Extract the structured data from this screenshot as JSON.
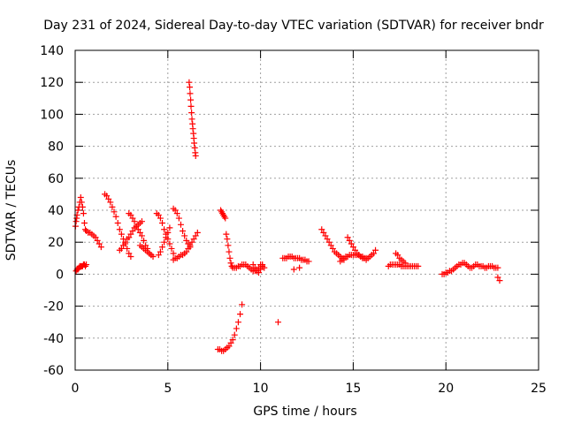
{
  "chart_data": {
    "type": "scatter",
    "title": "Day 231 of 2024, Sidereal Day-to-day VTEC variation (SDTVAR) for receiver bndr",
    "xlabel": "GPS time / hours",
    "ylabel": "SDTVAR / TECUs",
    "xlim": [
      0,
      25
    ],
    "ylim": [
      -60,
      140
    ],
    "xticks": [
      0,
      5,
      10,
      15,
      20,
      25
    ],
    "yticks": [
      -60,
      -40,
      -20,
      0,
      20,
      40,
      60,
      80,
      100,
      120,
      140
    ],
    "xtick_labels": [
      "0",
      "5",
      "10",
      "15",
      "20",
      "25"
    ],
    "ytick_labels": [
      "-60",
      "-40",
      "-20",
      "0",
      "20",
      "40",
      "60",
      "80",
      "100",
      "120",
      "140"
    ],
    "grid": true,
    "marker": "plus",
    "color": "#ff0000",
    "series": [
      {
        "x": [
          0.02,
          0.05,
          0.08,
          0.1,
          0.15,
          0.2,
          0.25,
          0.3,
          0.35,
          0.4,
          0.45,
          0.5,
          0.55,
          0.6,
          0.7,
          0.8,
          0.9,
          1.0,
          1.1,
          1.2,
          1.3,
          1.4
        ],
        "y": [
          30,
          33,
          35,
          37,
          40,
          42,
          45,
          48,
          45,
          42,
          38,
          32,
          28,
          27,
          26,
          26,
          25,
          24,
          23,
          21,
          19,
          17
        ]
      },
      {
        "x": [
          0.05,
          0.1,
          0.15,
          0.2,
          0.25,
          0.3,
          0.35,
          0.4,
          0.45,
          0.5,
          0.55,
          0.6
        ],
        "y": [
          2,
          3,
          3,
          4,
          5,
          5,
          5,
          5,
          6,
          6,
          5,
          6
        ]
      },
      {
        "x": [
          1.6,
          1.7,
          1.8,
          1.9,
          2.0,
          2.1,
          2.2,
          2.3,
          2.4,
          2.5,
          2.6,
          2.7,
          2.8,
          2.9,
          3.0
        ],
        "y": [
          50,
          49,
          47,
          45,
          42,
          39,
          36,
          32,
          28,
          25,
          22,
          19,
          16,
          13,
          11
        ]
      },
      {
        "x": [
          2.4,
          2.5,
          2.6,
          2.7,
          2.8,
          2.9,
          3.0,
          3.1,
          3.2,
          3.3,
          3.4,
          3.5,
          3.6
        ],
        "y": [
          15,
          16,
          18,
          20,
          22,
          23,
          25,
          27,
          29,
          30,
          31,
          32,
          33
        ]
      },
      {
        "x": [
          2.9,
          3.0,
          3.1,
          3.2,
          3.3,
          3.4,
          3.5,
          3.6,
          3.7,
          3.8,
          3.9,
          4.0,
          4.1,
          4.2
        ],
        "y": [
          38,
          37,
          35,
          33,
          30,
          28,
          26,
          24,
          21,
          18,
          16,
          13,
          12,
          11
        ]
      },
      {
        "x": [
          3.5,
          3.6,
          3.7,
          3.8,
          3.9,
          4.0,
          4.1
        ],
        "y": [
          18,
          17,
          16,
          15,
          14,
          13,
          12
        ]
      },
      {
        "x": [
          4.4,
          4.5,
          4.6,
          4.7,
          4.8,
          4.9,
          5.0,
          5.1,
          5.2,
          5.3
        ],
        "y": [
          38,
          37,
          35,
          32,
          28,
          25,
          22,
          19,
          16,
          13
        ]
      },
      {
        "x": [
          4.5,
          4.6,
          4.7,
          4.8,
          4.9,
          5.0,
          5.1
        ],
        "y": [
          12,
          14,
          17,
          20,
          23,
          26,
          29
        ]
      },
      {
        "x": [
          5.3,
          5.4,
          5.5,
          5.6,
          5.7,
          5.8,
          5.9,
          6.0,
          6.1,
          6.2
        ],
        "y": [
          41,
          40,
          38,
          35,
          31,
          27,
          24,
          21,
          19,
          17
        ]
      },
      {
        "x": [
          5.3,
          5.4,
          5.5,
          5.6,
          5.7,
          5.8,
          5.9,
          6.0,
          6.1,
          6.2,
          6.3,
          6.4,
          6.5,
          6.6
        ],
        "y": [
          9,
          10,
          10,
          11,
          12,
          12,
          13,
          14,
          16,
          18,
          20,
          22,
          24,
          26
        ]
      },
      {
        "x": [
          6.15,
          6.18,
          6.2,
          6.23,
          6.25,
          6.28,
          6.3,
          6.33,
          6.35,
          6.38,
          6.4,
          6.42,
          6.45,
          6.48,
          6.5
        ],
        "y": [
          120,
          117,
          113,
          109,
          105,
          101,
          97,
          94,
          91,
          88,
          85,
          82,
          79,
          76,
          74
        ]
      },
      {
        "x": [
          7.85,
          7.9,
          7.95,
          8.0,
          8.05,
          8.1,
          8.15,
          8.2,
          8.25,
          8.3,
          8.35,
          8.4,
          8.45,
          8.5,
          8.6,
          8.7,
          8.8,
          8.9,
          9.0,
          9.1,
          9.2,
          9.3,
          9.4,
          9.5,
          9.6,
          9.7,
          9.8,
          9.9,
          10.0,
          10.1,
          10.2
        ],
        "y": [
          40,
          39,
          38,
          37,
          36,
          35,
          25,
          22,
          18,
          14,
          10,
          7,
          5,
          4,
          4,
          4,
          5,
          5,
          6,
          6,
          6,
          5,
          4,
          3,
          2,
          2,
          3,
          4,
          6,
          5,
          4
        ]
      },
      {
        "x": [
          7.7,
          7.8,
          7.9,
          8.0,
          8.1,
          8.2,
          8.3,
          8.4,
          8.5,
          8.6,
          8.7,
          8.8,
          8.9,
          9.0
        ],
        "y": [
          -47,
          -47,
          -48,
          -48,
          -47,
          -46,
          -45,
          -43,
          -41,
          -38,
          -34,
          -30,
          -25,
          -19
        ]
      },
      {
        "x": [
          9.6,
          9.7,
          9.8,
          9.9,
          10.0,
          10.1
        ],
        "y": [
          6,
          4,
          2,
          1,
          3,
          6
        ]
      },
      {
        "x": [
          10.95
        ],
        "y": [
          -30
        ]
      },
      {
        "x": [
          11.2,
          11.3,
          11.4,
          11.5,
          11.6,
          11.7,
          11.8,
          11.9,
          12.0,
          12.1,
          12.2,
          12.3,
          12.4,
          12.5,
          12.6
        ],
        "y": [
          10,
          10,
          10,
          11,
          11,
          11,
          10,
          10,
          10,
          10,
          9,
          9,
          9,
          8,
          8
        ]
      },
      {
        "x": [
          11.8,
          12.1
        ],
        "y": [
          3,
          4
        ]
      },
      {
        "x": [
          13.3,
          13.4,
          13.5,
          13.6,
          13.7,
          13.8,
          13.9,
          14.0,
          14.1,
          14.2,
          14.3,
          14.4,
          14.5
        ],
        "y": [
          28,
          26,
          24,
          22,
          20,
          18,
          16,
          14,
          13,
          12,
          11,
          10,
          9
        ]
      },
      {
        "x": [
          14.3,
          14.4,
          14.5,
          14.6,
          14.7,
          14.8,
          14.9,
          15.0,
          15.1,
          15.2,
          15.3,
          15.4,
          15.5,
          15.6,
          15.7,
          15.8,
          15.9,
          16.0,
          16.1
        ],
        "y": [
          8,
          9,
          10,
          11,
          11,
          12,
          12,
          12,
          12,
          12,
          12,
          11,
          11,
          10,
          10,
          10,
          11,
          12,
          13
        ]
      },
      {
        "x": [
          14.7,
          14.8,
          14.9,
          15.0,
          15.1,
          15.2,
          15.3,
          15.4,
          15.5,
          15.6,
          15.7
        ],
        "y": [
          23,
          21,
          19,
          17,
          15,
          13,
          12,
          11,
          10,
          10,
          9
        ]
      },
      {
        "x": [
          16.2
        ],
        "y": [
          15
        ]
      },
      {
        "x": [
          16.9,
          17.0,
          17.1,
          17.2,
          17.3,
          17.4,
          17.5,
          17.6,
          17.7,
          17.8,
          17.9,
          18.0,
          18.1,
          18.2,
          18.3,
          18.4,
          18.5
        ],
        "y": [
          5,
          6,
          6,
          6,
          6,
          6,
          6,
          5,
          5,
          5,
          5,
          5,
          5,
          5,
          5,
          5,
          5
        ]
      },
      {
        "x": [
          17.3,
          17.4,
          17.5,
          17.6,
          17.7,
          17.8
        ],
        "y": [
          13,
          12,
          10,
          9,
          8,
          7
        ]
      },
      {
        "x": [
          19.8,
          19.9,
          20.0,
          20.1,
          20.2,
          20.3,
          20.4,
          20.5,
          20.6,
          20.7,
          20.8,
          20.9,
          21.0,
          21.1,
          21.2,
          21.3,
          21.4,
          21.5,
          21.6,
          21.7,
          21.8,
          21.9,
          22.0,
          22.1,
          22.2,
          22.3,
          22.4,
          22.5,
          22.6,
          22.7,
          22.8
        ],
        "y": [
          0,
          0,
          1,
          1,
          2,
          2,
          3,
          4,
          5,
          6,
          6,
          7,
          7,
          6,
          5,
          4,
          4,
          5,
          6,
          6,
          5,
          5,
          5,
          4,
          4,
          5,
          5,
          5,
          4,
          4,
          4
        ]
      },
      {
        "x": [
          22.8,
          22.9
        ],
        "y": [
          -2,
          -4
        ]
      }
    ]
  }
}
